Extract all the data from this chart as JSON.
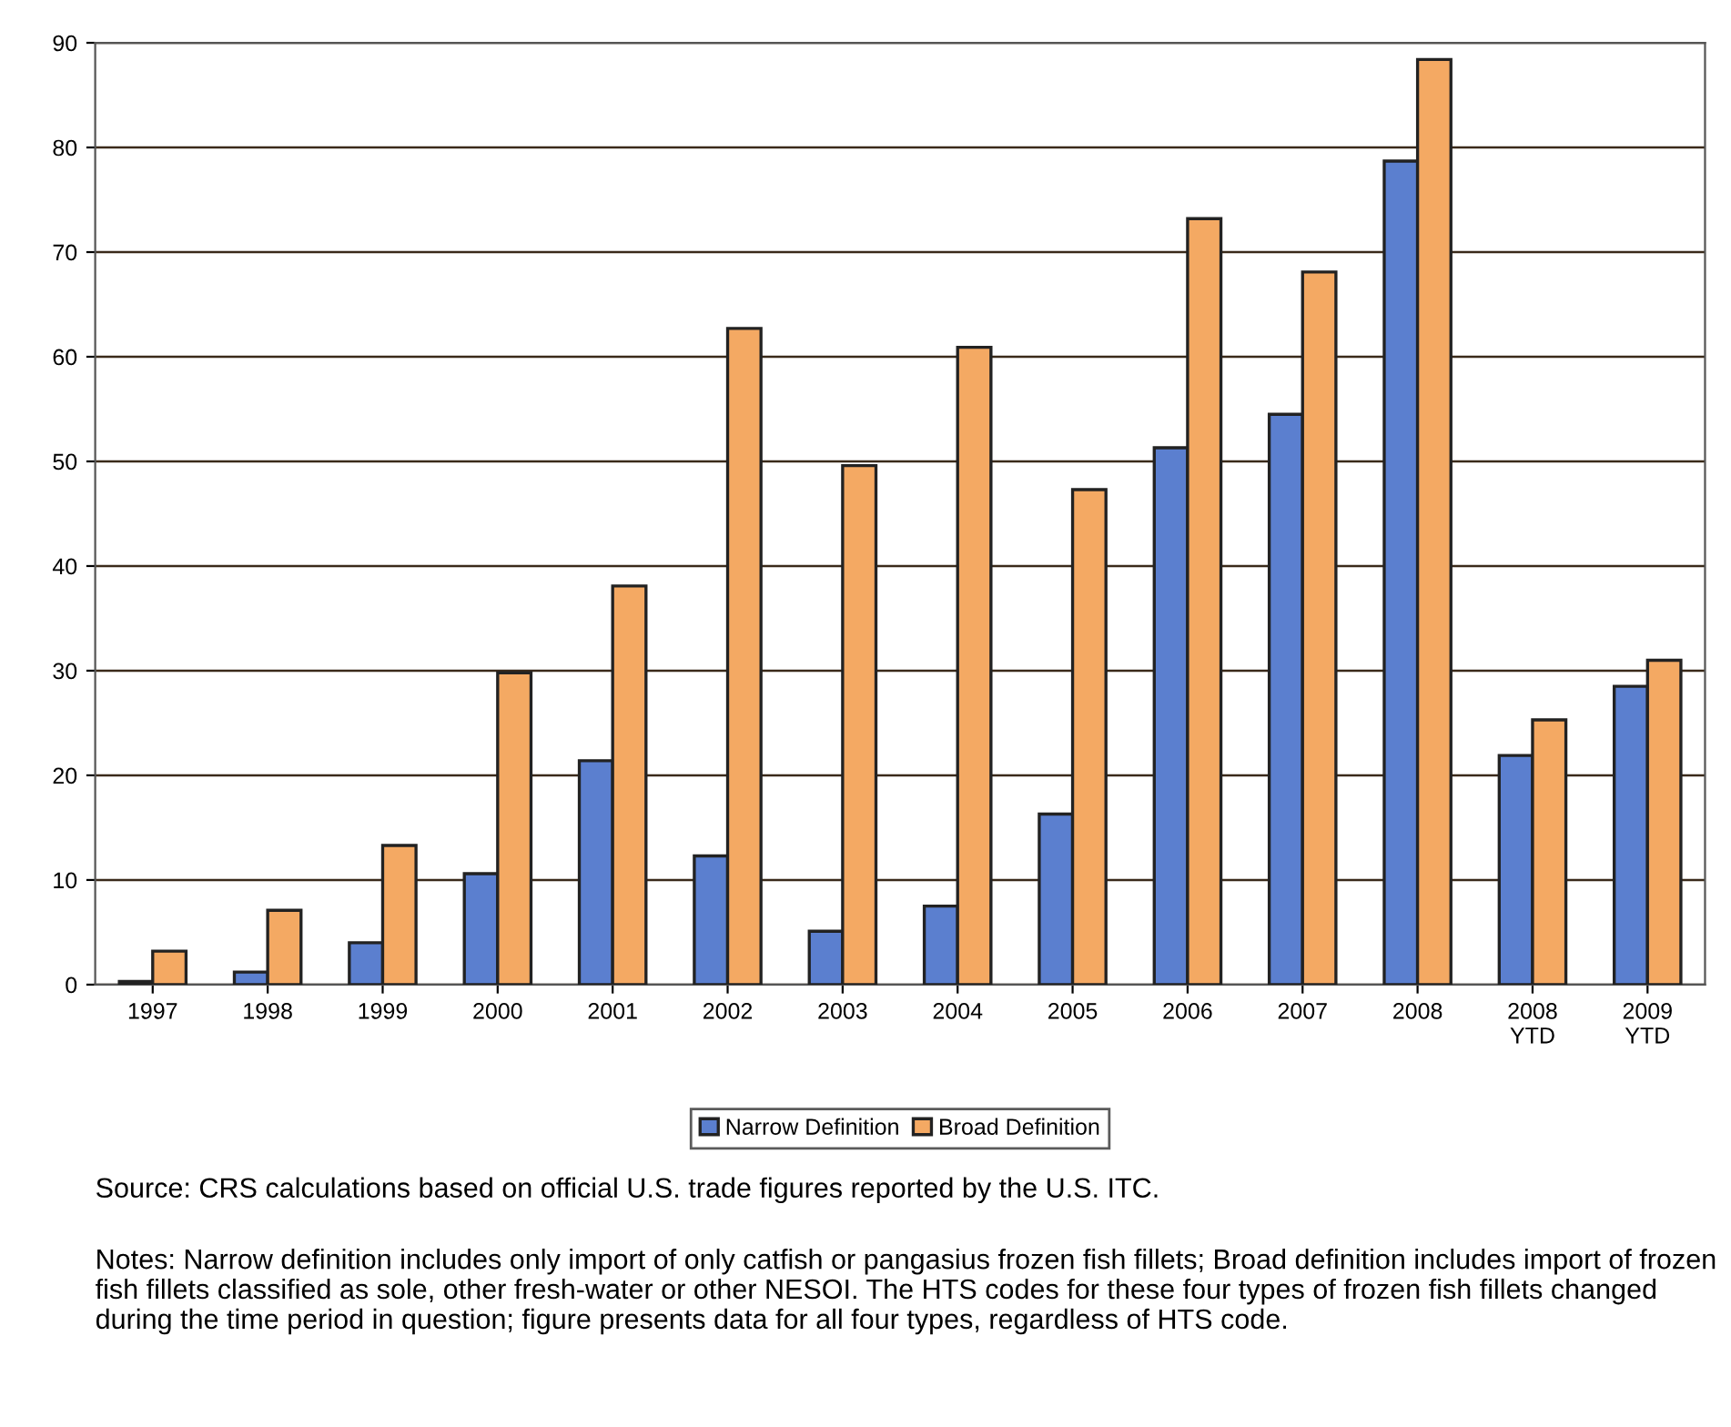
{
  "chart_data": {
    "type": "bar",
    "categories": [
      "1997",
      "1998",
      "1999",
      "2000",
      "2001",
      "2002",
      "2003",
      "2004",
      "2005",
      "2006",
      "2007",
      "2008",
      "2008\nYTD",
      "2009\nYTD"
    ],
    "series": [
      {
        "name": "Narrow Definition",
        "color": "#5b7fcf",
        "values": [
          0.3,
          1.2,
          4.0,
          10.6,
          21.4,
          12.3,
          5.1,
          7.5,
          16.3,
          51.3,
          54.5,
          78.7,
          21.9,
          28.5
        ]
      },
      {
        "name": "Broad Definition",
        "color": "#f4a963",
        "values": [
          3.2,
          7.1,
          13.3,
          29.8,
          38.1,
          62.7,
          49.6,
          60.9,
          47.3,
          73.2,
          68.1,
          88.4,
          25.3,
          31.0
        ]
      }
    ],
    "ylim": [
      0,
      90
    ],
    "yticks": [
      0,
      10,
      20,
      30,
      40,
      50,
      60,
      70,
      80,
      90
    ],
    "grid": "y",
    "legend": "bottom",
    "annotations": [
      "Source: CRS calculations based on official U.S. trade figures reported by the U.S. ITC.",
      "Notes: Narrow definition includes only import of only catfish or pangasius frozen fish fillets; Broad definition includes import of frozen fish fillets classified as sole, other fresh-water or other NESOI. The HTS codes for these four types of frozen fish fillets changed during the time period in question; figure presents data for all four types, regardless of HTS code."
    ]
  }
}
